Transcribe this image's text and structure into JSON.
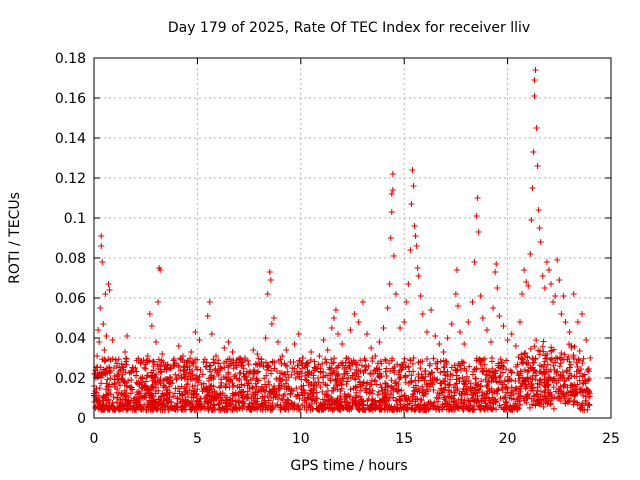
{
  "chart_data": {
    "type": "scatter",
    "title": "Day 179 of 2025, Rate Of TEC Index for receiver lliv",
    "xlabel": "GPS time / hours",
    "ylabel": "ROTI / TECUs",
    "xlim": [
      0,
      25
    ],
    "ylim": [
      0,
      0.18
    ],
    "xticks": [
      {
        "value": 0,
        "label": "0"
      },
      {
        "value": 5,
        "label": "5"
      },
      {
        "value": 10,
        "label": "10"
      },
      {
        "value": 15,
        "label": "15"
      },
      {
        "value": 20,
        "label": "20"
      },
      {
        "value": 25,
        "label": "25"
      }
    ],
    "yticks": [
      {
        "value": 0,
        "label": "0"
      },
      {
        "value": 0.02,
        "label": "0.02"
      },
      {
        "value": 0.04,
        "label": "0.04"
      },
      {
        "value": 0.06,
        "label": "0.06"
      },
      {
        "value": 0.08,
        "label": "0.08"
      },
      {
        "value": 0.1,
        "label": "0.1"
      },
      {
        "value": 0.12,
        "label": "0.12"
      },
      {
        "value": 0.14,
        "label": "0.14"
      },
      {
        "value": 0.16,
        "label": "0.16"
      },
      {
        "value": 0.18,
        "label": "0.18"
      }
    ],
    "grid": true,
    "marker": "plus",
    "color": "#e00000",
    "series": [
      {
        "name": "ROTI",
        "points": [
          [
            0.0,
            0.016
          ],
          [
            0.05,
            0.022
          ],
          [
            0.1,
            0.009
          ],
          [
            0.15,
            0.031
          ],
          [
            0.2,
            0.044
          ],
          [
            0.25,
            0.038
          ],
          [
            0.3,
            0.055
          ],
          [
            0.35,
            0.091
          ],
          [
            0.35,
            0.086
          ],
          [
            0.4,
            0.078
          ],
          [
            0.45,
            0.047
          ],
          [
            0.5,
            0.034
          ],
          [
            0.55,
            0.062
          ],
          [
            0.6,
            0.041
          ],
          [
            0.7,
            0.067
          ],
          [
            0.75,
            0.064
          ],
          [
            0.8,
            0.029
          ],
          [
            0.9,
            0.039
          ],
          [
            1.0,
            0.021
          ],
          [
            1.1,
            0.026
          ],
          [
            1.2,
            0.018
          ],
          [
            1.3,
            0.024
          ],
          [
            1.5,
            0.033
          ],
          [
            1.6,
            0.041
          ],
          [
            1.8,
            0.019
          ],
          [
            2.0,
            0.025
          ],
          [
            2.2,
            0.017
          ],
          [
            2.4,
            0.029
          ],
          [
            2.6,
            0.031
          ],
          [
            2.7,
            0.052
          ],
          [
            2.8,
            0.046
          ],
          [
            2.9,
            0.028
          ],
          [
            3.0,
            0.038
          ],
          [
            3.1,
            0.058
          ],
          [
            3.2,
            0.074
          ],
          [
            3.15,
            0.075
          ],
          [
            3.3,
            0.032
          ],
          [
            3.5,
            0.024
          ],
          [
            3.7,
            0.02
          ],
          [
            3.9,
            0.027
          ],
          [
            4.1,
            0.036
          ],
          [
            4.3,
            0.031
          ],
          [
            4.5,
            0.026
          ],
          [
            4.7,
            0.033
          ],
          [
            4.9,
            0.043
          ],
          [
            5.1,
            0.039
          ],
          [
            5.3,
            0.028
          ],
          [
            5.5,
            0.051
          ],
          [
            5.6,
            0.058
          ],
          [
            5.7,
            0.042
          ],
          [
            5.9,
            0.031
          ],
          [
            6.1,
            0.024
          ],
          [
            6.3,
            0.035
          ],
          [
            6.5,
            0.038
          ],
          [
            6.7,
            0.033
          ],
          [
            6.9,
            0.029
          ],
          [
            7.1,
            0.027
          ],
          [
            7.3,
            0.03
          ],
          [
            7.5,
            0.022
          ],
          [
            7.7,
            0.034
          ],
          [
            7.9,
            0.032
          ],
          [
            8.1,
            0.028
          ],
          [
            8.3,
            0.04
          ],
          [
            8.4,
            0.062
          ],
          [
            8.5,
            0.073
          ],
          [
            8.55,
            0.069
          ],
          [
            8.6,
            0.047
          ],
          [
            8.7,
            0.05
          ],
          [
            8.9,
            0.038
          ],
          [
            9.1,
            0.031
          ],
          [
            9.3,
            0.034
          ],
          [
            9.5,
            0.028
          ],
          [
            9.7,
            0.037
          ],
          [
            9.9,
            0.042
          ],
          [
            10.1,
            0.03
          ],
          [
            10.3,
            0.026
          ],
          [
            10.5,
            0.033
          ],
          [
            10.7,
            0.025
          ],
          [
            10.9,
            0.031
          ],
          [
            11.1,
            0.039
          ],
          [
            11.3,
            0.034
          ],
          [
            11.5,
            0.045
          ],
          [
            11.6,
            0.05
          ],
          [
            11.7,
            0.054
          ],
          [
            11.8,
            0.042
          ],
          [
            12.0,
            0.037
          ],
          [
            12.2,
            0.03
          ],
          [
            12.4,
            0.044
          ],
          [
            12.6,
            0.052
          ],
          [
            12.8,
            0.048
          ],
          [
            13.0,
            0.058
          ],
          [
            13.2,
            0.042
          ],
          [
            13.4,
            0.035
          ],
          [
            13.6,
            0.031
          ],
          [
            13.8,
            0.038
          ],
          [
            14.0,
            0.045
          ],
          [
            14.2,
            0.055
          ],
          [
            14.3,
            0.067
          ],
          [
            14.35,
            0.09
          ],
          [
            14.4,
            0.103
          ],
          [
            14.4,
            0.112
          ],
          [
            14.45,
            0.114
          ],
          [
            14.45,
            0.122
          ],
          [
            14.5,
            0.081
          ],
          [
            14.6,
            0.062
          ],
          [
            14.8,
            0.045
          ],
          [
            15.0,
            0.048
          ],
          [
            15.1,
            0.058
          ],
          [
            15.2,
            0.067
          ],
          [
            15.3,
            0.084
          ],
          [
            15.35,
            0.107
          ],
          [
            15.4,
            0.124
          ],
          [
            15.45,
            0.116
          ],
          [
            15.5,
            0.096
          ],
          [
            15.55,
            0.091
          ],
          [
            15.6,
            0.086
          ],
          [
            15.65,
            0.075
          ],
          [
            15.7,
            0.071
          ],
          [
            15.8,
            0.061
          ],
          [
            15.9,
            0.052
          ],
          [
            16.1,
            0.043
          ],
          [
            16.3,
            0.054
          ],
          [
            16.5,
            0.041
          ],
          [
            16.7,
            0.037
          ],
          [
            16.9,
            0.033
          ],
          [
            17.1,
            0.04
          ],
          [
            17.3,
            0.047
          ],
          [
            17.5,
            0.062
          ],
          [
            17.55,
            0.074
          ],
          [
            17.6,
            0.056
          ],
          [
            17.7,
            0.043
          ],
          [
            17.9,
            0.037
          ],
          [
            18.1,
            0.048
          ],
          [
            18.3,
            0.058
          ],
          [
            18.4,
            0.078
          ],
          [
            18.5,
            0.101
          ],
          [
            18.55,
            0.11
          ],
          [
            18.6,
            0.093
          ],
          [
            18.7,
            0.061
          ],
          [
            18.8,
            0.05
          ],
          [
            19.0,
            0.044
          ],
          [
            19.2,
            0.038
          ],
          [
            19.3,
            0.055
          ],
          [
            19.4,
            0.073
          ],
          [
            19.45,
            0.077
          ],
          [
            19.5,
            0.065
          ],
          [
            19.6,
            0.051
          ],
          [
            19.8,
            0.046
          ],
          [
            20.0,
            0.039
          ],
          [
            20.2,
            0.042
          ],
          [
            20.4,
            0.036
          ],
          [
            20.6,
            0.048
          ],
          [
            20.7,
            0.062
          ],
          [
            20.8,
            0.074
          ],
          [
            20.9,
            0.068
          ],
          [
            21.0,
            0.066
          ],
          [
            21.1,
            0.082
          ],
          [
            21.15,
            0.099
          ],
          [
            21.2,
            0.115
          ],
          [
            21.25,
            0.133
          ],
          [
            21.3,
            0.161
          ],
          [
            21.3,
            0.169
          ],
          [
            21.35,
            0.174
          ],
          [
            21.4,
            0.145
          ],
          [
            21.45,
            0.126
          ],
          [
            21.5,
            0.104
          ],
          [
            21.55,
            0.095
          ],
          [
            21.6,
            0.088
          ],
          [
            21.7,
            0.071
          ],
          [
            21.8,
            0.065
          ],
          [
            21.9,
            0.078
          ],
          [
            22.0,
            0.074
          ],
          [
            22.1,
            0.067
          ],
          [
            22.2,
            0.058
          ],
          [
            22.3,
            0.061
          ],
          [
            22.4,
            0.079
          ],
          [
            22.5,
            0.069
          ],
          [
            22.6,
            0.052
          ],
          [
            22.7,
            0.061
          ],
          [
            22.8,
            0.048
          ],
          [
            23.0,
            0.043
          ],
          [
            23.2,
            0.062
          ],
          [
            23.4,
            0.048
          ],
          [
            23.6,
            0.052
          ],
          [
            23.8,
            0.039
          ],
          [
            24.0,
            0.03
          ]
        ]
      }
    ]
  }
}
